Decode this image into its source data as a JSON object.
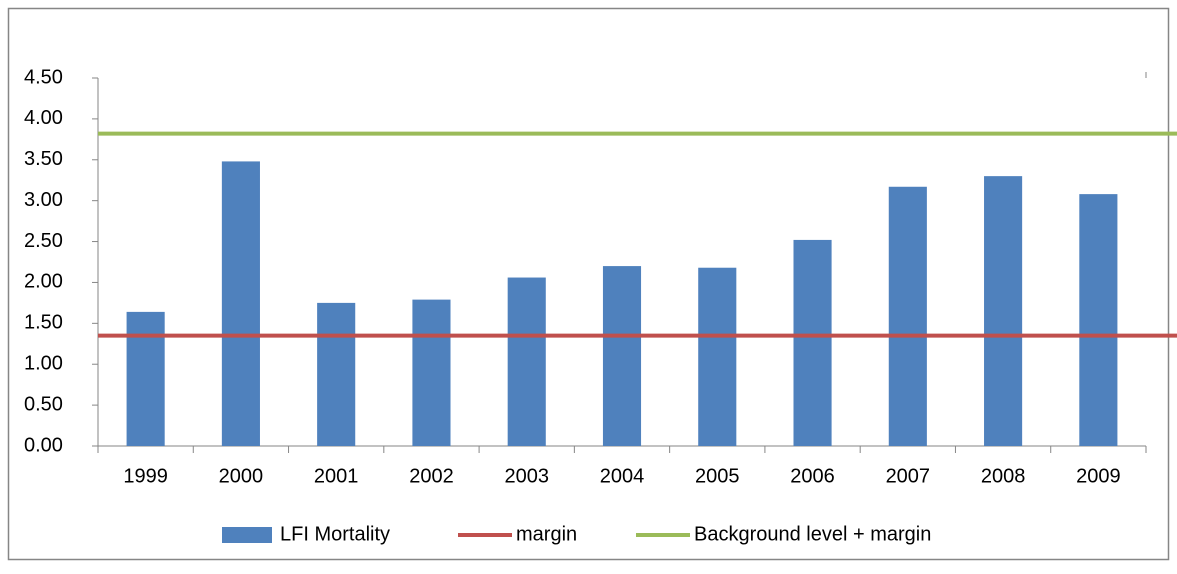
{
  "chart_data": {
    "type": "bar",
    "categories": [
      "1999",
      "2000",
      "2001",
      "2002",
      "2003",
      "2004",
      "2005",
      "2006",
      "2007",
      "2008",
      "2009"
    ],
    "series": [
      {
        "name": "LFI Mortality",
        "type": "bar",
        "color": "#4f81bd",
        "values": [
          1.64,
          3.48,
          1.75,
          1.79,
          2.06,
          2.2,
          2.18,
          2.52,
          3.17,
          3.3,
          3.08
        ]
      },
      {
        "name": "margin",
        "type": "line",
        "color": "#c0504d",
        "values": [
          1.35,
          1.35,
          1.35,
          1.35,
          1.35,
          1.35,
          1.35,
          1.35,
          1.35,
          1.35,
          1.35
        ]
      },
      {
        "name": "Background level + margin",
        "type": "line",
        "color": "#9bbb59",
        "values": [
          3.82,
          3.82,
          3.82,
          3.82,
          3.82,
          3.82,
          3.82,
          3.82,
          3.82,
          3.82,
          3.82
        ]
      }
    ],
    "ylim": [
      0,
      4.5
    ],
    "yticks": [
      {
        "value": 0,
        "label": "0.00"
      },
      {
        "value": 0.5,
        "label": "0.50"
      },
      {
        "value": 1,
        "label": "1.00"
      },
      {
        "value": 1.5,
        "label": "1.50"
      },
      {
        "value": 2,
        "label": "2.00"
      },
      {
        "value": 2.5,
        "label": "2.50"
      },
      {
        "value": 3,
        "label": "3.00"
      },
      {
        "value": 3.5,
        "label": "3.50"
      },
      {
        "value": 4,
        "label": "4.00"
      },
      {
        "value": 4.5,
        "label": "4.50"
      }
    ],
    "grid": false,
    "legend": "bottom"
  }
}
